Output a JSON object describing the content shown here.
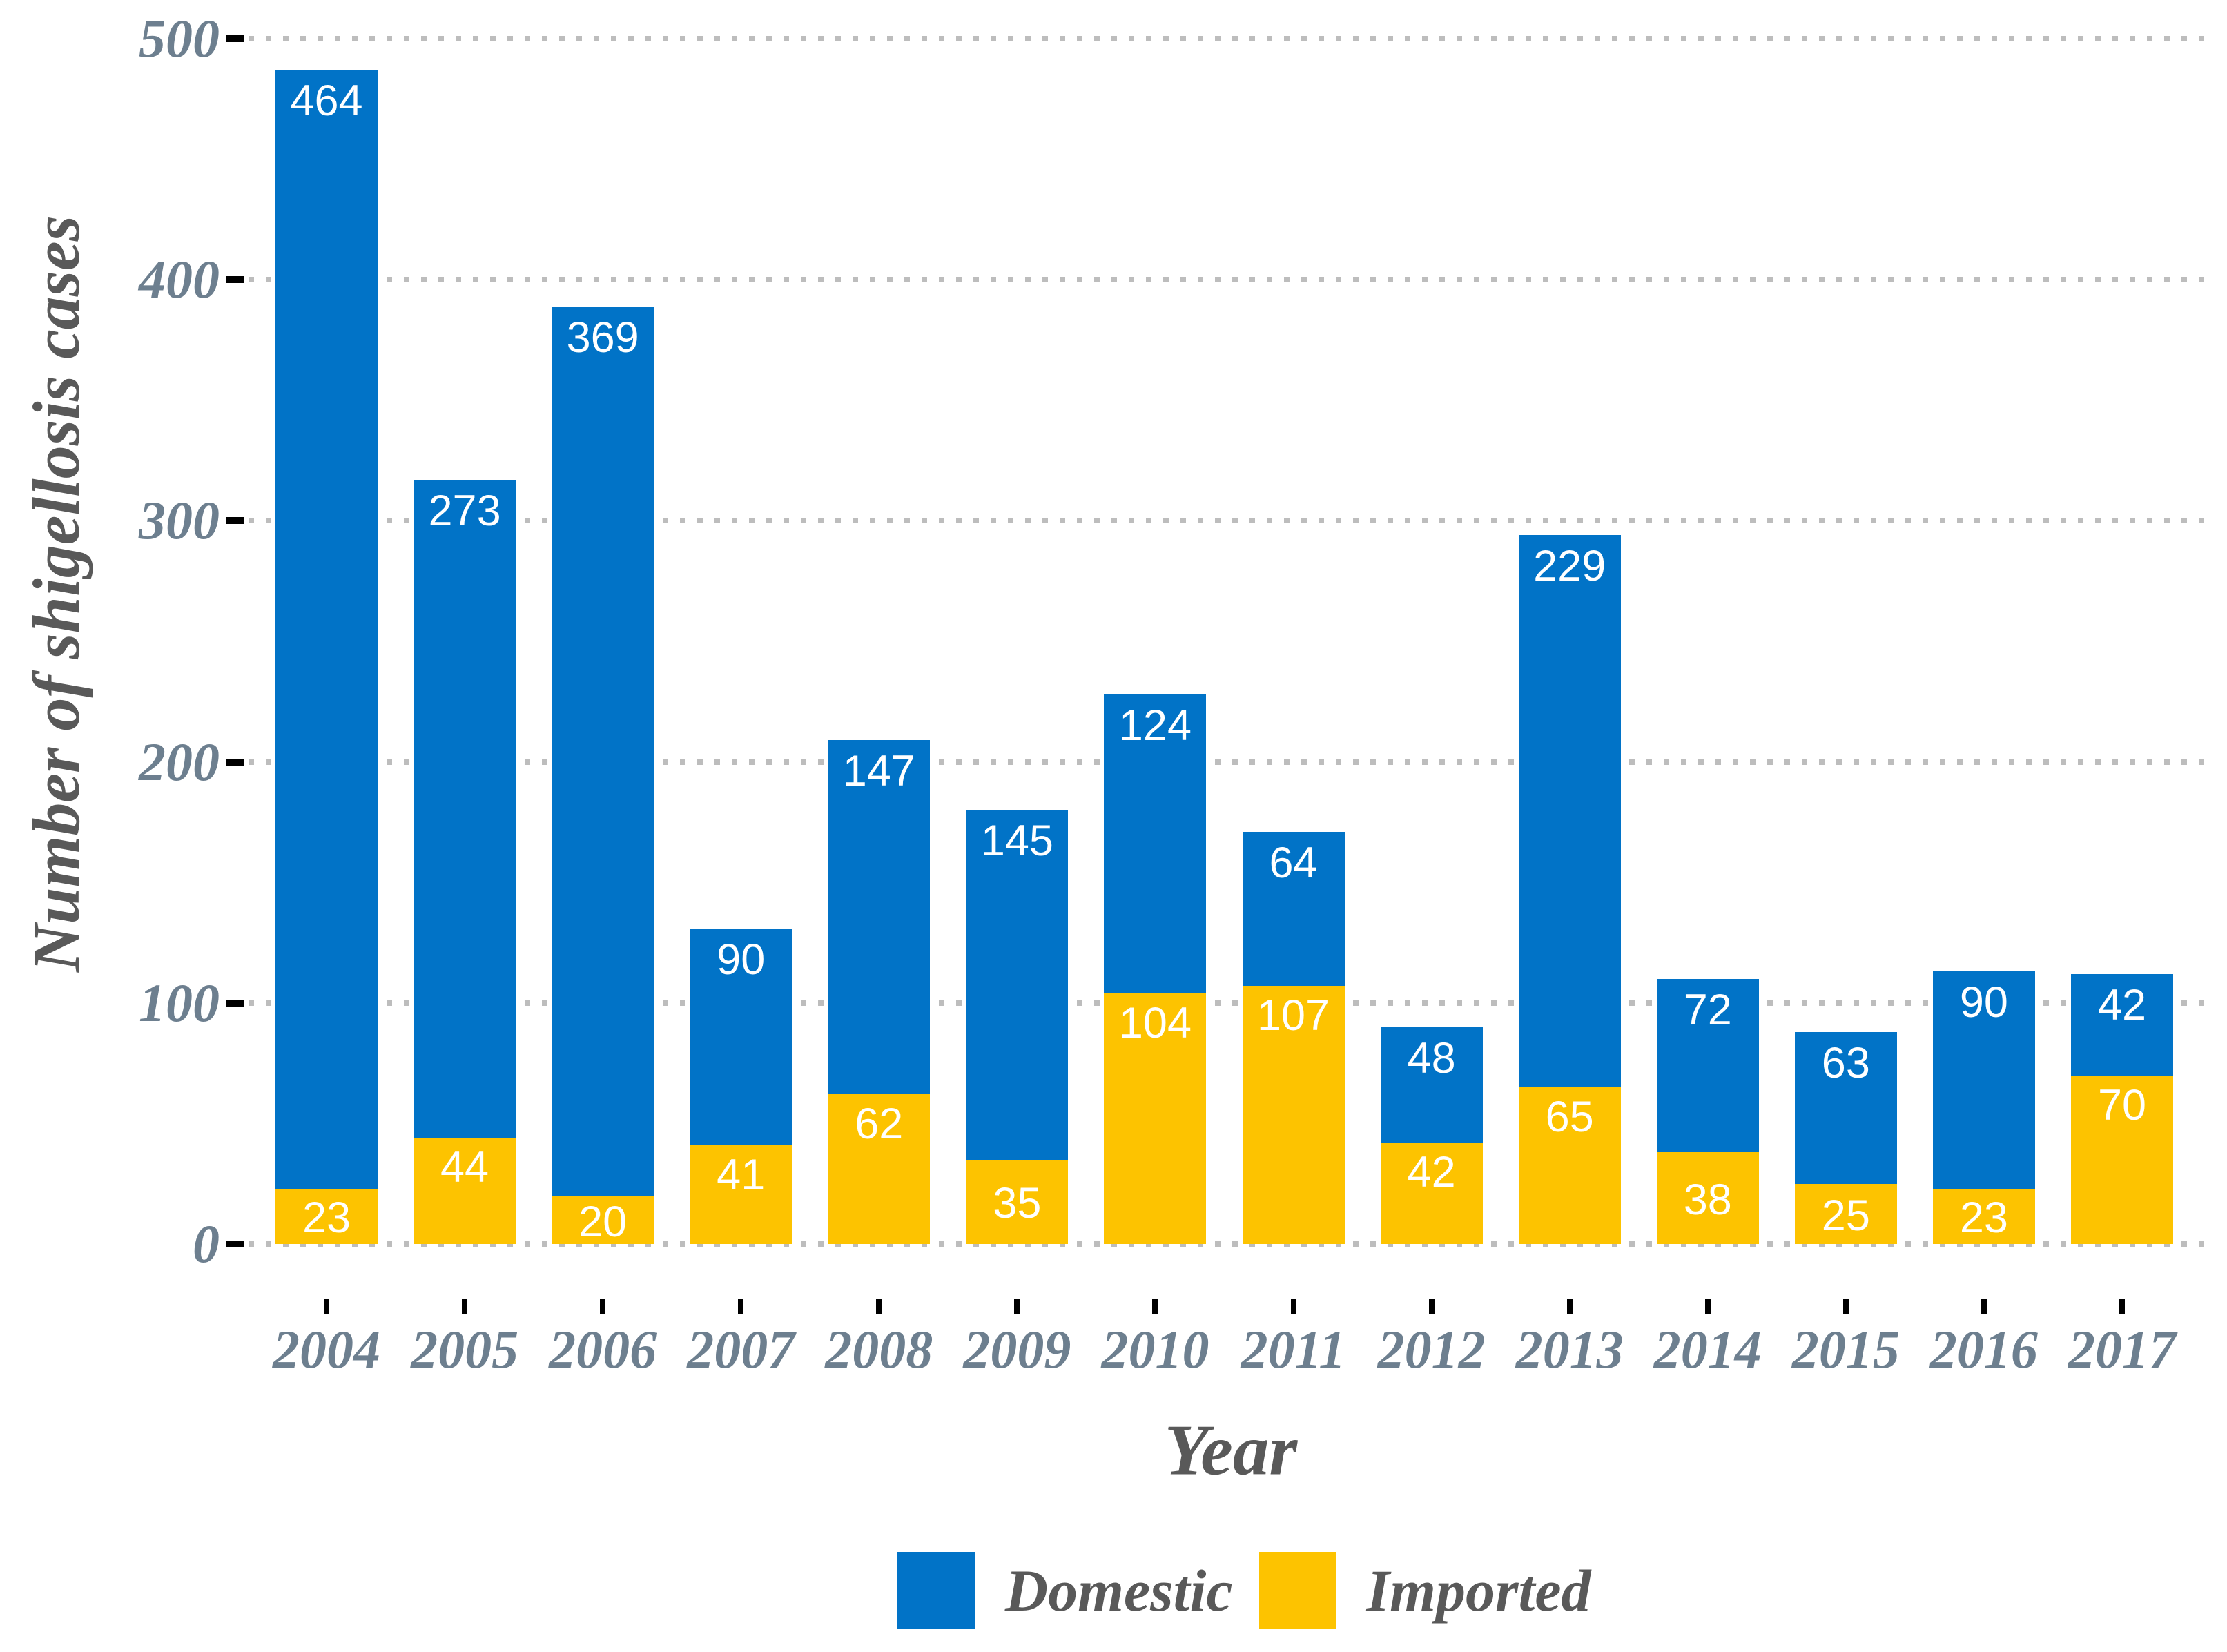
{
  "chart_data": {
    "type": "bar",
    "stacked": true,
    "title": "",
    "xlabel": "Year",
    "ylabel": "Number of shigellosis cases",
    "categories": [
      "2004",
      "2005",
      "2006",
      "2007",
      "2008",
      "2009",
      "2010",
      "2011",
      "2012",
      "2013",
      "2014",
      "2015",
      "2016",
      "2017"
    ],
    "series": [
      {
        "name": "Domestic",
        "color": "#0173C7",
        "values": [
          464,
          273,
          369,
          90,
          147,
          145,
          124,
          64,
          48,
          229,
          72,
          63,
          90,
          42
        ]
      },
      {
        "name": "Imported",
        "color": "#FDC300",
        "values": [
          23,
          44,
          20,
          41,
          62,
          35,
          104,
          107,
          42,
          65,
          38,
          25,
          23,
          70
        ]
      }
    ],
    "totals": [
      487,
      317,
      389,
      131,
      209,
      180,
      228,
      171,
      90,
      294,
      110,
      88,
      113,
      112
    ],
    "bar_labels_shown": true,
    "y_ticks": [
      0,
      100,
      200,
      300,
      400,
      500
    ],
    "ylim": [
      0,
      500
    ],
    "grid": "horizontal-dotted",
    "legend_position": "bottom",
    "colors": {
      "tick_label": "#6d7f8f",
      "axis_title": "#595959",
      "grid_dot": "#bdbdbd",
      "tick_mark": "#000000",
      "bar_label": "#ffffff",
      "background": "#ffffff"
    }
  },
  "legend": {
    "items": [
      {
        "label": "Domestic",
        "color": "#0173C7"
      },
      {
        "label": "Imported",
        "color": "#FDC300"
      }
    ]
  }
}
